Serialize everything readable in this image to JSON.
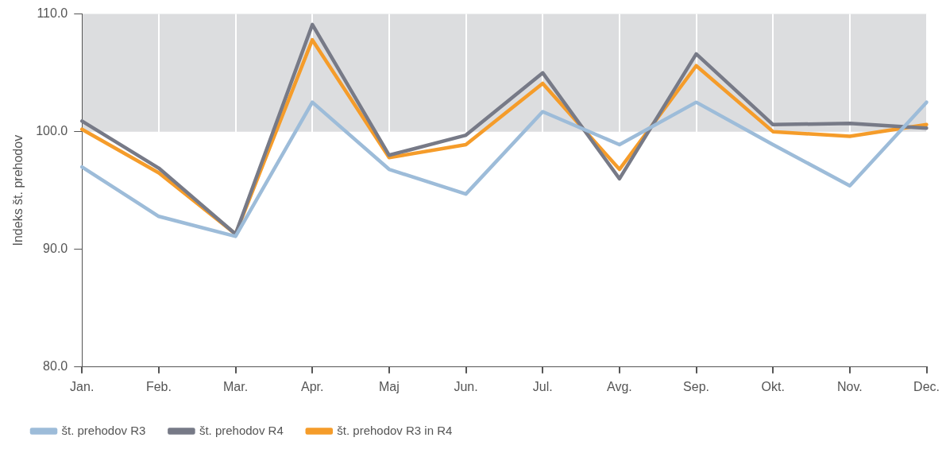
{
  "chart_data": {
    "type": "line",
    "ylabel": "Indeks št. prehodov",
    "categories": [
      "Jan.",
      "Feb.",
      "Mar.",
      "Apr.",
      "Maj",
      "Jun.",
      "Jul.",
      "Avg.",
      "Sep.",
      "Okt.",
      "Nov.",
      "Dec."
    ],
    "series": [
      {
        "name": "št. prehodov R3",
        "color": "#9dbcd9",
        "values": [
          97.0,
          92.8,
          91.1,
          102.5,
          96.8,
          94.7,
          101.7,
          98.9,
          102.5,
          98.9,
          95.4,
          102.5
        ]
      },
      {
        "name": "št. prehodov R4",
        "color": "#777a87",
        "values": [
          100.9,
          96.9,
          91.3,
          109.1,
          98.0,
          99.7,
          105.0,
          96.0,
          106.6,
          100.6,
          100.7,
          100.3
        ]
      },
      {
        "name": "št. prehodov R3 in R4",
        "color": "#f59c2a",
        "values": [
          100.2,
          96.5,
          91.3,
          107.8,
          97.8,
          98.9,
          104.1,
          96.8,
          105.6,
          100.0,
          99.6,
          100.6
        ]
      }
    ],
    "ylim": [
      80,
      110
    ],
    "yticks": [
      {
        "value": 80,
        "label": "80.0"
      },
      {
        "value": 90,
        "label": "90.0"
      },
      {
        "value": 100,
        "label": "100.0"
      },
      {
        "value": 110,
        "label": "110.0"
      }
    ],
    "bands": [
      {
        "axis": "y",
        "from": 100,
        "to": 110,
        "color": "#dcdddf"
      }
    ],
    "grid": "x",
    "legend": "bottom left",
    "marker": "none",
    "line_style": "solid"
  }
}
